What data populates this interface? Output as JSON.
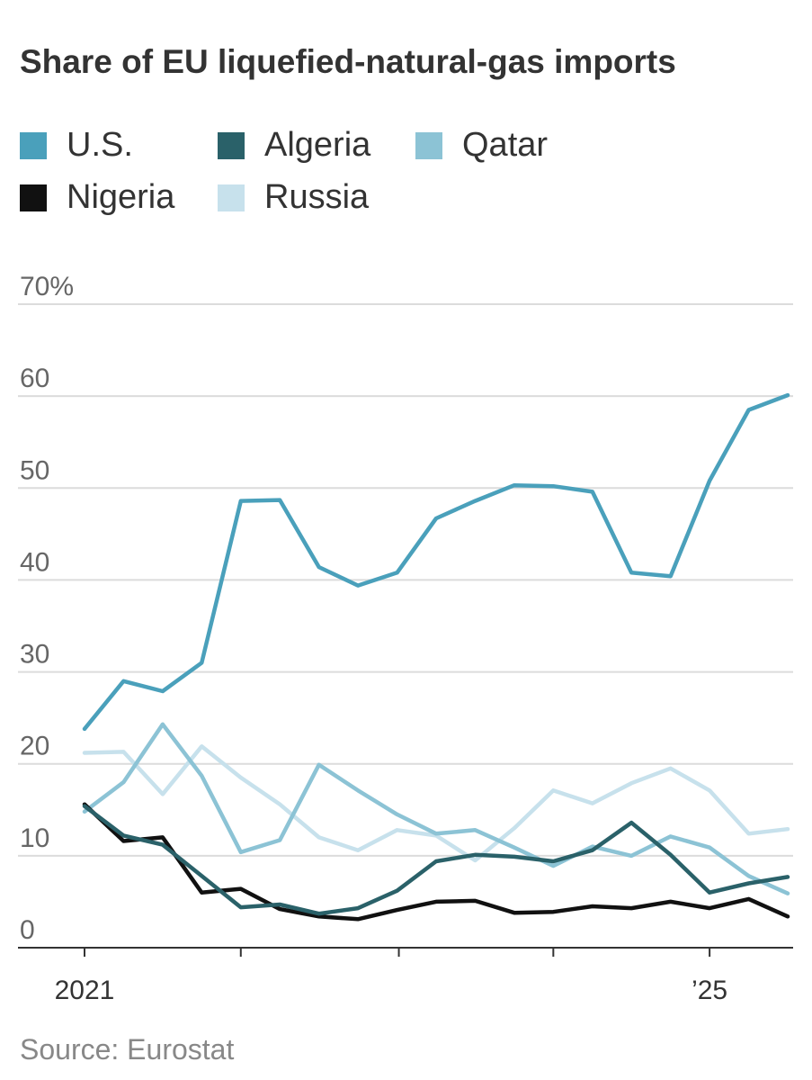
{
  "chart_data": {
    "type": "line",
    "title": "Share of EU liquefied-natural-gas imports",
    "source": "Source: Eurostat",
    "ylim": [
      0,
      70
    ],
    "y_ticks": [
      {
        "value": 70,
        "label": "70%"
      },
      {
        "value": 60,
        "label": "60"
      },
      {
        "value": 50,
        "label": "50"
      },
      {
        "value": 40,
        "label": "40"
      },
      {
        "value": 30,
        "label": "30"
      },
      {
        "value": 20,
        "label": "20"
      },
      {
        "value": 10,
        "label": "10"
      },
      {
        "value": 0,
        "label": "0"
      }
    ],
    "x": [
      "2021 Q1",
      "2021 Q2",
      "2021 Q3",
      "2021 Q4",
      "2022 Q1",
      "2022 Q2",
      "2022 Q3",
      "2022 Q4",
      "2023 Q1",
      "2023 Q2",
      "2023 Q3",
      "2023 Q4",
      "2024 Q1",
      "2024 Q2",
      "2024 Q3",
      "2024 Q4",
      "2025 Q1",
      "2025 Q2",
      "2025 Q3"
    ],
    "x_tick_labels": [
      {
        "index": 0,
        "label": "2021"
      },
      {
        "index": 16,
        "label": "’25"
      }
    ],
    "x_minor_ticks": [
      4,
      8,
      12
    ],
    "grid": true,
    "legend_position": "top",
    "series": [
      {
        "name": "U.S.",
        "color": "#4aa0bb",
        "values": [
          23.8,
          29.0,
          27.9,
          31.0,
          48.6,
          48.7,
          41.4,
          39.4,
          40.8,
          46.7,
          48.6,
          50.3,
          50.2,
          49.6,
          40.8,
          40.4,
          50.8,
          58.5,
          60.1
        ]
      },
      {
        "name": "Algeria",
        "color": "#2a6169",
        "values": [
          15.4,
          12.2,
          11.2,
          7.8,
          4.4,
          4.7,
          3.7,
          4.3,
          6.2,
          9.4,
          10.1,
          9.9,
          9.4,
          10.6,
          13.6,
          10.1,
          6.0,
          7.0,
          7.7
        ]
      },
      {
        "name": "Qatar",
        "color": "#8cc3d5",
        "values": [
          14.8,
          18.0,
          24.3,
          18.7,
          10.4,
          11.7,
          19.9,
          17.1,
          14.5,
          12.4,
          12.8,
          10.9,
          8.9,
          11.0,
          10.0,
          12.1,
          10.9,
          7.8,
          5.9
        ]
      },
      {
        "name": "Nigeria",
        "color": "#111111",
        "values": [
          15.6,
          11.6,
          12.0,
          6.0,
          6.4,
          4.2,
          3.4,
          3.1,
          4.1,
          5.0,
          5.1,
          3.8,
          3.9,
          4.5,
          4.3,
          5.0,
          4.3,
          5.3,
          3.4
        ]
      },
      {
        "name": "Russia",
        "color": "#c7e1ec",
        "values": [
          21.2,
          21.3,
          16.7,
          21.9,
          18.5,
          15.6,
          12.0,
          10.6,
          12.8,
          12.2,
          9.5,
          13.0,
          17.1,
          15.7,
          17.9,
          19.5,
          17.1,
          12.4,
          12.9
        ]
      }
    ]
  }
}
